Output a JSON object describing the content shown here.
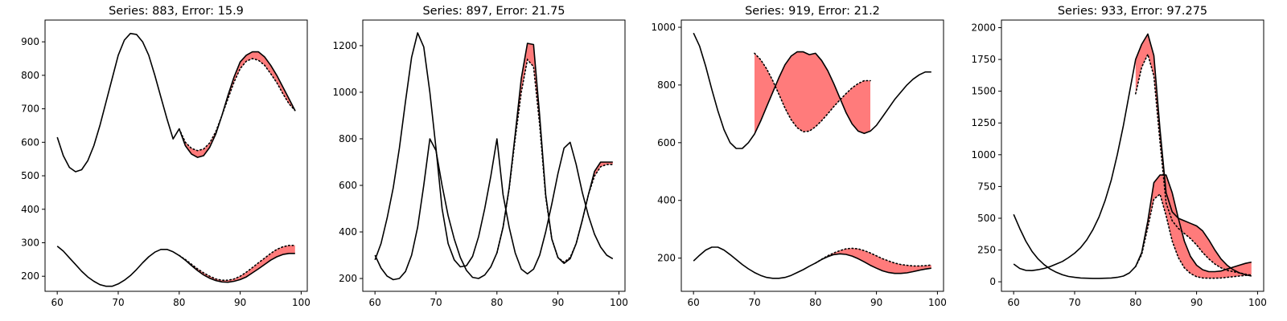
{
  "figure": {
    "colors": {
      "error_fill": "#ff7b7b",
      "line": "#000000",
      "background": "#ffffff"
    }
  },
  "chart_data": [
    {
      "type": "line",
      "title": "Series: 883, Error: 15.9",
      "xlim": [
        58,
        101
      ],
      "ylim": [
        155,
        965
      ],
      "xticks": [
        60,
        70,
        80,
        90,
        100
      ],
      "yticks": [
        200,
        300,
        400,
        500,
        600,
        700,
        800,
        900
      ],
      "grid": false,
      "forecast_start": 80,
      "series": [
        {
          "x": [
            60,
            61,
            62,
            63,
            64,
            65,
            66,
            67,
            68,
            69,
            70,
            71,
            72,
            73,
            74,
            75,
            76,
            77,
            78,
            79,
            80,
            81,
            82,
            83,
            84,
            85,
            86,
            87,
            88,
            89,
            90,
            91,
            92,
            93,
            94,
            95,
            96,
            97,
            98,
            99
          ],
          "actual": [
            615,
            560,
            525,
            512,
            518,
            545,
            590,
            650,
            720,
            790,
            860,
            905,
            925,
            922,
            900,
            860,
            800,
            735,
            670,
            610,
            640,
            590,
            565,
            555,
            560,
            585,
            625,
            680,
            740,
            795,
            840,
            860,
            870,
            870,
            855,
            830,
            800,
            765,
            730,
            695
          ],
          "predicted": [
            null,
            null,
            null,
            null,
            null,
            null,
            null,
            null,
            null,
            null,
            null,
            null,
            null,
            null,
            null,
            null,
            null,
            null,
            null,
            null,
            640,
            600,
            582,
            575,
            580,
            598,
            632,
            680,
            730,
            780,
            820,
            842,
            850,
            845,
            830,
            805,
            778,
            745,
            715,
            695
          ]
        },
        {
          "x": [
            60,
            61,
            62,
            63,
            64,
            65,
            66,
            67,
            68,
            69,
            70,
            71,
            72,
            73,
            74,
            75,
            76,
            77,
            78,
            79,
            80,
            81,
            82,
            83,
            84,
            85,
            86,
            87,
            88,
            89,
            90,
            91,
            92,
            93,
            94,
            95,
            96,
            97,
            98,
            99
          ],
          "actual": [
            290,
            275,
            255,
            235,
            215,
            198,
            185,
            175,
            170,
            170,
            177,
            188,
            202,
            220,
            240,
            258,
            272,
            280,
            280,
            273,
            262,
            248,
            232,
            217,
            204,
            194,
            187,
            183,
            182,
            185,
            190,
            198,
            210,
            222,
            235,
            248,
            258,
            265,
            268,
            268
          ],
          "predicted": [
            null,
            null,
            null,
            null,
            null,
            null,
            null,
            null,
            null,
            null,
            null,
            null,
            null,
            null,
            null,
            null,
            null,
            null,
            null,
            null,
            262,
            250,
            236,
            222,
            210,
            200,
            192,
            188,
            188,
            192,
            200,
            212,
            226,
            240,
            254,
            268,
            280,
            288,
            292,
            292
          ]
        }
      ]
    },
    {
      "type": "line",
      "title": "Series: 897, Error: 21.75",
      "xlim": [
        58,
        101
      ],
      "ylim": [
        145,
        1310
      ],
      "xticks": [
        60,
        70,
        80,
        90,
        100
      ],
      "yticks": [
        200,
        400,
        600,
        800,
        1000,
        1200
      ],
      "grid": false,
      "forecast_start": 80,
      "series": [
        {
          "x": [
            60,
            61,
            62,
            63,
            64,
            65,
            66,
            67,
            68,
            69,
            70,
            71,
            72,
            73,
            74,
            75,
            76,
            77,
            78,
            79,
            80,
            81,
            82,
            83,
            84,
            85,
            86,
            87,
            88,
            89,
            90,
            91,
            92,
            93,
            94,
            95,
            96,
            97,
            98,
            99
          ],
          "actual": [
            280,
            350,
            460,
            590,
            760,
            960,
            1150,
            1255,
            1195,
            1000,
            760,
            500,
            350,
            280,
            250,
            255,
            295,
            380,
            500,
            640,
            800,
            560,
            420,
            310,
            240,
            220,
            240,
            300,
            400,
            520,
            650,
            760,
            785,
            690,
            570,
            470,
            390,
            335,
            300,
            285
          ],
          "predicted": [
            null,
            null,
            null,
            null,
            null,
            null,
            null,
            null,
            null,
            null,
            null,
            null,
            null,
            null,
            null,
            null,
            null,
            null,
            null,
            null,
            null,
            null,
            null,
            null,
            null,
            null,
            null,
            null,
            null,
            null,
            null,
            null,
            null,
            null,
            null,
            null,
            null,
            null,
            null,
            null
          ]
        },
        {
          "x": [
            60,
            61,
            62,
            63,
            64,
            65,
            66,
            67,
            68,
            69,
            70,
            71,
            72,
            73,
            74,
            75,
            76,
            77,
            78,
            79,
            80,
            81,
            82,
            83,
            84,
            85,
            86,
            87,
            88,
            89,
            90,
            91,
            92,
            93,
            94,
            95,
            96,
            97,
            98,
            99
          ],
          "actual": [
            300,
            245,
            210,
            195,
            200,
            230,
            300,
            420,
            600,
            800,
            750,
            600,
            470,
            370,
            290,
            235,
            205,
            200,
            215,
            250,
            310,
            420,
            590,
            820,
            1060,
            1210,
            1205,
            900,
            560,
            370,
            290,
            265,
            285,
            350,
            450,
            560,
            660,
            700,
            700,
            700
          ],
          "predicted": [
            null,
            null,
            null,
            null,
            null,
            null,
            null,
            null,
            null,
            null,
            null,
            null,
            null,
            null,
            null,
            null,
            null,
            null,
            null,
            null,
            310,
            420,
            585,
            800,
            1000,
            1140,
            1110,
            860,
            550,
            370,
            290,
            270,
            290,
            350,
            450,
            560,
            640,
            680,
            690,
            690
          ]
        }
      ]
    },
    {
      "type": "line",
      "title": "Series: 919, Error: 21.2",
      "xlim": [
        58,
        101
      ],
      "ylim": [
        85,
        1025
      ],
      "xticks": [
        60,
        70,
        80,
        90,
        100
      ],
      "yticks": [
        200,
        400,
        600,
        800,
        1000
      ],
      "grid": false,
      "forecast_start": 80,
      "series": [
        {
          "x": [
            60,
            61,
            62,
            63,
            64,
            65,
            66,
            67,
            68,
            69,
            70,
            71,
            72,
            73,
            74,
            75,
            76,
            77,
            78,
            79,
            80,
            81,
            82,
            83,
            84,
            85,
            86,
            87,
            88,
            89,
            90,
            91,
            92,
            93,
            94,
            95,
            96,
            97,
            98,
            99
          ],
          "actual": [
            980,
            935,
            865,
            785,
            710,
            645,
            600,
            580,
            580,
            600,
            630,
            675,
            725,
            775,
            825,
            870,
            900,
            915,
            915,
            905,
            910,
            885,
            850,
            805,
            755,
            705,
            665,
            640,
            632,
            640,
            660,
            690,
            720,
            750,
            775,
            800,
            820,
            835,
            845,
            845
          ],
          "predicted": [
            null,
            null,
            null,
            null,
            null,
            null,
            null,
            null,
            null,
            null,
            910,
            888,
            856,
            815,
            768,
            720,
            680,
            652,
            638,
            640,
            655,
            676,
            700,
            725,
            748,
            770,
            790,
            805,
            815,
            815,
            null,
            null,
            null,
            null,
            null,
            null,
            null,
            null,
            null,
            null
          ]
        },
        {
          "x": [
            60,
            61,
            62,
            63,
            64,
            65,
            66,
            67,
            68,
            69,
            70,
            71,
            72,
            73,
            74,
            75,
            76,
            77,
            78,
            79,
            80,
            81,
            82,
            83,
            84,
            85,
            86,
            87,
            88,
            89,
            90,
            91,
            92,
            93,
            94,
            95,
            96,
            97,
            98,
            99
          ],
          "actual": [
            190,
            210,
            228,
            238,
            238,
            228,
            212,
            195,
            178,
            163,
            150,
            140,
            133,
            130,
            130,
            133,
            140,
            150,
            160,
            172,
            183,
            195,
            205,
            212,
            215,
            213,
            207,
            198,
            187,
            175,
            165,
            156,
            150,
            147,
            147,
            149,
            153,
            158,
            162,
            165
          ],
          "predicted": [
            null,
            null,
            null,
            null,
            null,
            null,
            null,
            null,
            null,
            null,
            null,
            null,
            null,
            null,
            null,
            null,
            null,
            null,
            null,
            null,
            183,
            196,
            208,
            218,
            226,
            232,
            234,
            232,
            226,
            218,
            208,
            198,
            190,
            183,
            178,
            175,
            173,
            173,
            174,
            176
          ]
        }
      ]
    },
    {
      "type": "line",
      "title": "Series: 933, Error: 97.275",
      "xlim": [
        58,
        101
      ],
      "ylim": [
        -75,
        2060
      ],
      "xticks": [
        60,
        70,
        80,
        90,
        100
      ],
      "yticks": [
        0,
        250,
        500,
        750,
        1000,
        1250,
        1500,
        1750,
        2000
      ],
      "grid": false,
      "forecast_start": 80,
      "series": [
        {
          "x": [
            60,
            61,
            62,
            63,
            64,
            65,
            66,
            67,
            68,
            69,
            70,
            71,
            72,
            73,
            74,
            75,
            76,
            77,
            78,
            79,
            80,
            81,
            82,
            83,
            84,
            85,
            86,
            87,
            88,
            89,
            90,
            91,
            92,
            93,
            94,
            95,
            96,
            97,
            98,
            99
          ],
          "actual": [
            140,
            105,
            90,
            88,
            95,
            105,
            120,
            140,
            160,
            190,
            225,
            270,
            330,
            410,
            510,
            640,
            800,
            1000,
            1230,
            1490,
            1750,
            1870,
            1950,
            1780,
            1200,
            700,
            550,
            500,
            480,
            460,
            440,
            400,
            330,
            250,
            180,
            130,
            95,
            70,
            55,
            45
          ],
          "predicted": [
            null,
            null,
            null,
            null,
            null,
            null,
            null,
            null,
            null,
            null,
            null,
            null,
            null,
            null,
            null,
            null,
            null,
            null,
            null,
            null,
            1480,
            1690,
            1790,
            1620,
            1100,
            620,
            480,
            420,
            380,
            340,
            290,
            230,
            180,
            140,
            110,
            90,
            80,
            70,
            60,
            50
          ]
        },
        {
          "x": [
            60,
            61,
            62,
            63,
            64,
            65,
            66,
            67,
            68,
            69,
            70,
            71,
            72,
            73,
            74,
            75,
            76,
            77,
            78,
            79,
            80,
            81,
            82,
            83,
            84,
            85,
            86,
            87,
            88,
            89,
            90,
            91,
            92,
            93,
            94,
            95,
            96,
            97,
            98,
            99
          ],
          "actual": [
            530,
            420,
            320,
            240,
            180,
            135,
            100,
            75,
            55,
            42,
            35,
            30,
            28,
            27,
            27,
            28,
            30,
            35,
            45,
            70,
            120,
            230,
            480,
            780,
            840,
            840,
            700,
            500,
            320,
            200,
            130,
            95,
            80,
            80,
            85,
            100,
            115,
            130,
            145,
            155
          ],
          "predicted": [
            null,
            null,
            null,
            null,
            null,
            null,
            null,
            null,
            null,
            null,
            null,
            null,
            null,
            null,
            null,
            null,
            null,
            null,
            null,
            null,
            120,
            215,
            430,
            650,
            690,
            520,
            320,
            190,
            110,
            65,
            40,
            30,
            28,
            28,
            30,
            35,
            40,
            45,
            50,
            55
          ]
        }
      ]
    }
  ]
}
